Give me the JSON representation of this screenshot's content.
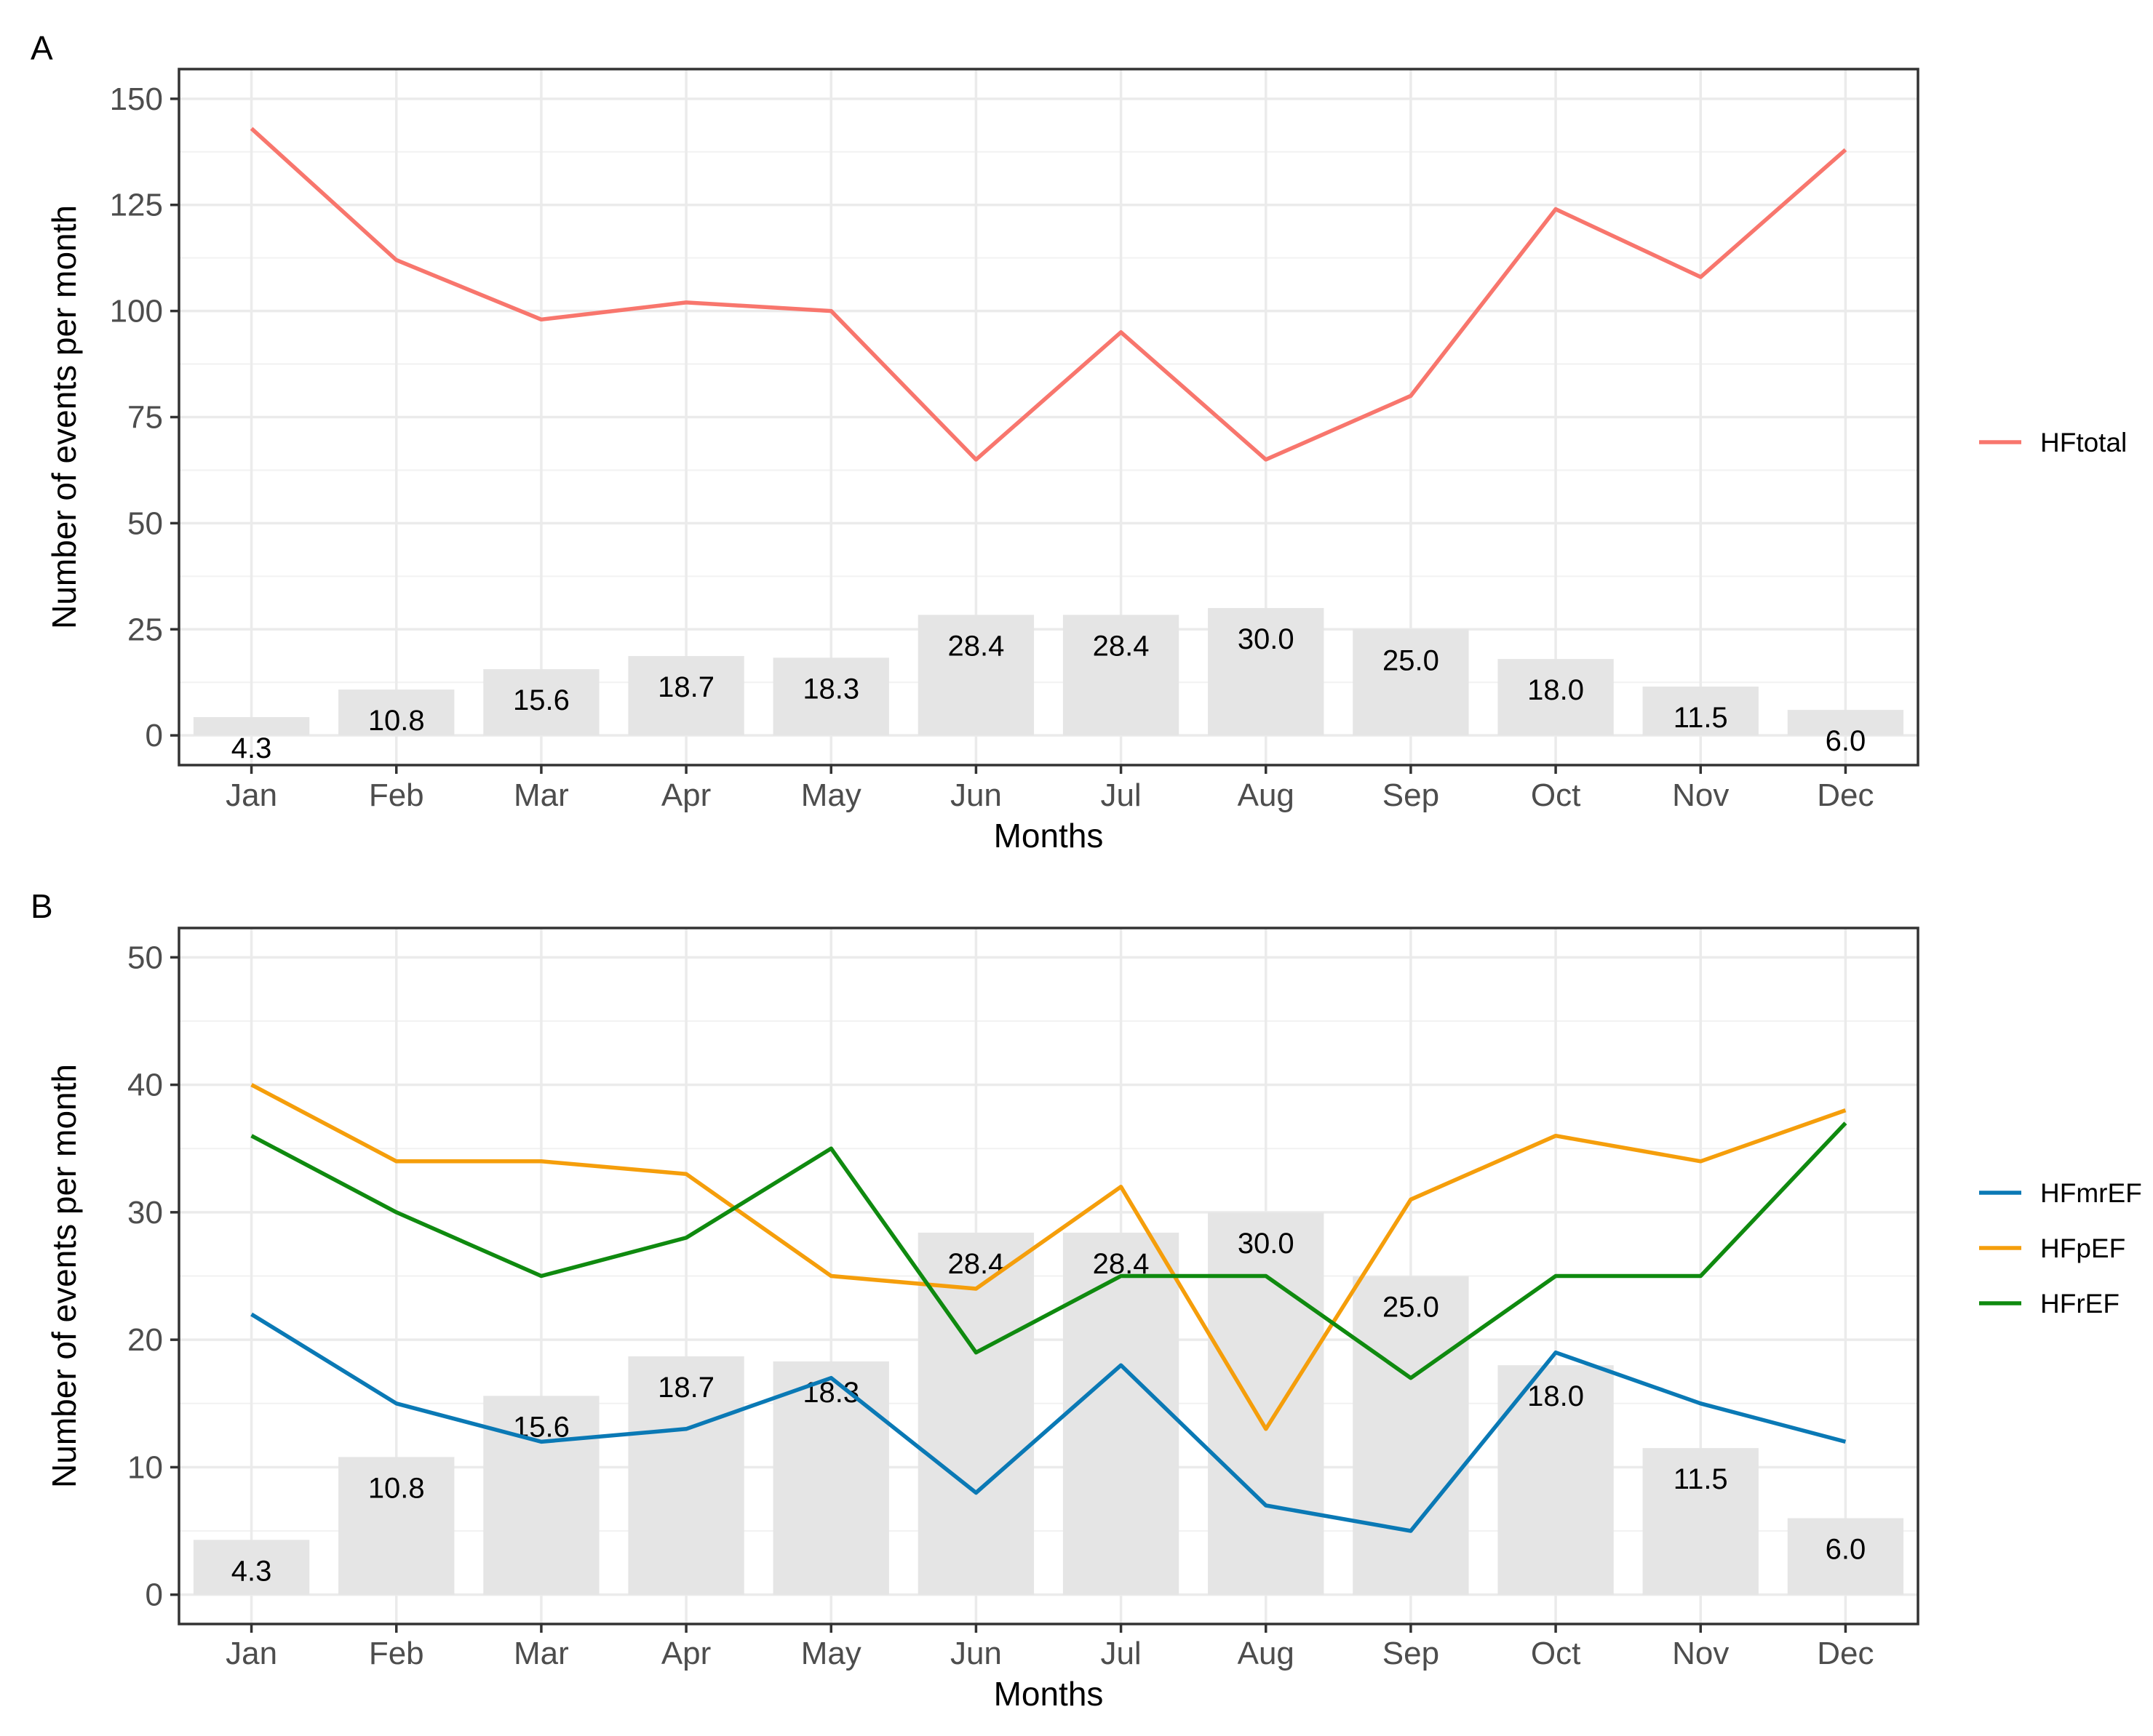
{
  "chart_data": [
    {
      "panel_label": "A",
      "type": "line",
      "xlabel": "Months",
      "ylabel": "Number of events per month",
      "ylim": [
        -7,
        157
      ],
      "yticks": [
        0,
        25,
        50,
        75,
        100,
        125,
        150
      ],
      "grid": true,
      "legend": "right",
      "categories": [
        "Jan",
        "Feb",
        "Mar",
        "Apr",
        "May",
        "Jun",
        "Jul",
        "Aug",
        "Sep",
        "Oct",
        "Nov",
        "Dec"
      ],
      "bars": {
        "type": "bar",
        "values": [
          4.3,
          10.8,
          15.6,
          18.7,
          18.3,
          28.4,
          28.4,
          30.0,
          25.0,
          18.0,
          11.5,
          6.0
        ],
        "labels": [
          "4.3",
          "10.8",
          "15.6",
          "18.7",
          "18.3",
          "28.4",
          "28.4",
          "30.0",
          "25.0",
          "18.0",
          "11.5",
          "6.0"
        ],
        "color": "#e5e5e5"
      },
      "series": [
        {
          "name": "HFtotal",
          "color": "#f8766d",
          "values": [
            143,
            112,
            98,
            102,
            100,
            65,
            95,
            65,
            80,
            124,
            108,
            138
          ]
        }
      ]
    },
    {
      "panel_label": "B",
      "type": "line",
      "xlabel": "Months",
      "ylabel": "Number of events per month",
      "ylim": [
        -2.3,
        52.3
      ],
      "yticks": [
        0,
        10,
        20,
        30,
        40,
        50
      ],
      "grid": true,
      "legend": "right",
      "categories": [
        "Jan",
        "Feb",
        "Mar",
        "Apr",
        "May",
        "Jun",
        "Jul",
        "Aug",
        "Sep",
        "Oct",
        "Nov",
        "Dec"
      ],
      "bars": {
        "type": "bar",
        "values": [
          4.3,
          10.8,
          15.6,
          18.7,
          18.3,
          28.4,
          28.4,
          30.0,
          25.0,
          18.0,
          11.5,
          6.0
        ],
        "labels": [
          "4.3",
          "10.8",
          "15.6",
          "18.7",
          "18.3",
          "28.4",
          "28.4",
          "30.0",
          "25.0",
          "18.0",
          "11.5",
          "6.0"
        ],
        "color": "#e5e5e5"
      },
      "series": [
        {
          "name": "HFmrEF",
          "color": "#0a79b5",
          "values": [
            22,
            15,
            12,
            13,
            17,
            8,
            18,
            7,
            5,
            19,
            15,
            12
          ]
        },
        {
          "name": "HFpEF",
          "color": "#f59e0b",
          "values": [
            40,
            34,
            34,
            33,
            25,
            24,
            32,
            13,
            31,
            36,
            34,
            38
          ]
        },
        {
          "name": "HFrEF",
          "color": "#0f8a0f",
          "values": [
            36,
            30,
            25,
            28,
            35,
            19,
            25,
            25,
            17,
            25,
            25,
            37
          ]
        }
      ]
    }
  ]
}
